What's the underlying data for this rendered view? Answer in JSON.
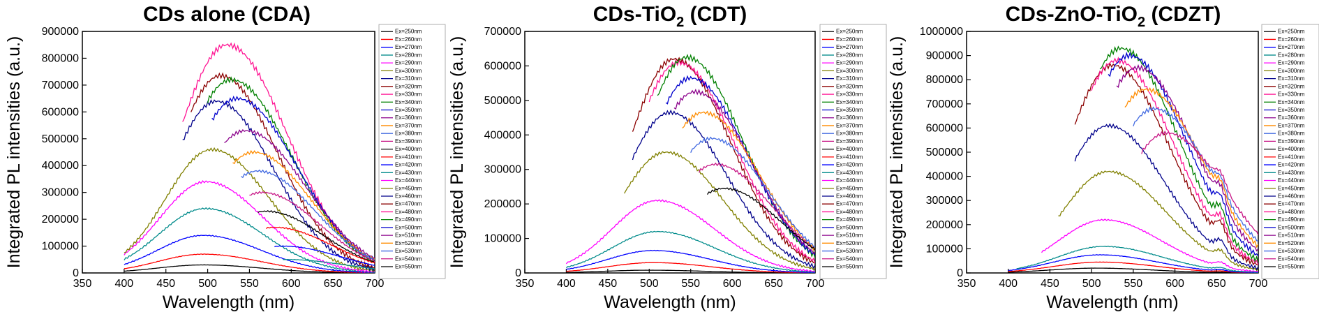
{
  "legend_labels": [
    "Ex=250nm",
    "Ex=260nm",
    "Ex=270nm",
    "Ex=280nm",
    "Ex=290nm",
    "Ex=300nm",
    "Ex=310nm",
    "Ex=320nm",
    "Ex=330nm",
    "Ex=340nm",
    "Ex=350nm",
    "Ex=360nm",
    "Ex=370nm",
    "Ex=380nm",
    "Ex=390nm",
    "Ex=400nm",
    "Ex=410nm",
    "Ex=420nm",
    "Ex=430nm",
    "Ex=440nm",
    "Ex=450nm",
    "Ex=460nm",
    "Ex=470nm",
    "Ex=480nm",
    "Ex=490nm",
    "Ex=500nm",
    "Ex=510nm",
    "Ex=520nm",
    "Ex=530nm",
    "Ex=540nm",
    "Ex=550nm"
  ],
  "series_colors": [
    "#000000",
    "#ff0000",
    "#0000ff",
    "#008b8b",
    "#ff00ff",
    "#808000",
    "#00008b",
    "#8b0000",
    "#ff1493",
    "#008000",
    "#0000cd",
    "#8b008b",
    "#ff8c00",
    "#4169e1",
    "#c71585",
    "#000000",
    "#ff0000",
    "#0000ff",
    "#008b8b",
    "#ff00ff",
    "#808000",
    "#00008b",
    "#8b0000",
    "#ff1493",
    "#008000",
    "#0000cd",
    "#8b008b",
    "#ff8c00",
    "#4169e1",
    "#c71585",
    "#000000"
  ],
  "chart_data": [
    {
      "type": "line",
      "title_main": "CDs alone (CDA)",
      "title_sub": "",
      "title_tail": "",
      "xlabel": "Wavelength (nm)",
      "ylabel": "Integrated PL intensities (a.u.)",
      "xlim": [
        350,
        700
      ],
      "ylim": [
        0,
        900000
      ],
      "xticks": [
        350,
        400,
        450,
        500,
        550,
        600,
        650,
        700
      ],
      "yticks": [
        0,
        100000,
        200000,
        300000,
        400000,
        500000,
        600000,
        700000,
        800000,
        900000
      ],
      "series": [
        {
          "name": "Ex=250nm",
          "peak_x": 495,
          "peak_y": 30000,
          "start_x": 400,
          "width": 55
        },
        {
          "name": "Ex=260nm",
          "peak_x": 495,
          "peak_y": 70000,
          "start_x": 400,
          "width": 55
        },
        {
          "name": "Ex=270nm",
          "peak_x": 495,
          "peak_y": 140000,
          "start_x": 400,
          "width": 55
        },
        {
          "name": "Ex=280nm",
          "peak_x": 497,
          "peak_y": 240000,
          "start_x": 400,
          "width": 55
        },
        {
          "name": "Ex=290nm",
          "peak_x": 498,
          "peak_y": 340000,
          "start_x": 400,
          "width": 55
        },
        {
          "name": "Ex=300nm",
          "peak_x": 505,
          "peak_y": 460000,
          "start_x": 400,
          "width": 55
        },
        {
          "name": "Ex=310nm",
          "peak_x": 510,
          "peak_y": 640000,
          "start_x": 470,
          "width": 55
        },
        {
          "name": "Ex=320nm",
          "peak_x": 515,
          "peak_y": 735000,
          "start_x": 480,
          "width": 55
        },
        {
          "name": "Ex=330nm",
          "peak_x": 523,
          "peak_y": 850000,
          "start_x": 470,
          "width": 58
        },
        {
          "name": "Ex=340nm",
          "peak_x": 528,
          "peak_y": 720000,
          "start_x": 500,
          "width": 58
        },
        {
          "name": "Ex=350nm",
          "peak_x": 535,
          "peak_y": 650000,
          "start_x": 505,
          "width": 58
        },
        {
          "name": "Ex=360nm",
          "peak_x": 545,
          "peak_y": 530000,
          "start_x": 520,
          "width": 58
        },
        {
          "name": "Ex=370nm",
          "peak_x": 555,
          "peak_y": 450000,
          "start_x": 530,
          "width": 55
        },
        {
          "name": "Ex=380nm",
          "peak_x": 560,
          "peak_y": 380000,
          "start_x": 540,
          "width": 55
        },
        {
          "name": "Ex=390nm",
          "peak_x": 565,
          "peak_y": 300000,
          "start_x": 550,
          "width": 55
        },
        {
          "name": "Ex=400nm",
          "peak_x": 570,
          "peak_y": 230000,
          "start_x": 560,
          "width": 55
        },
        {
          "name": "Ex=410nm",
          "peak_x": 580,
          "peak_y": 170000,
          "start_x": 570,
          "width": 55
        },
        {
          "name": "Ex=420nm",
          "peak_x": 590,
          "peak_y": 100000,
          "start_x": 580,
          "width": 55
        },
        {
          "name": "Ex=430nm",
          "peak_x": 595,
          "peak_y": 50000,
          "start_x": 590,
          "width": 55
        }
      ]
    },
    {
      "type": "line",
      "title_main": "CDs-TiO",
      "title_sub": "2",
      "title_tail": " (CDT)",
      "xlabel": "Wavelength (nm)",
      "ylabel": "Integrated PL intensities (a.u.)",
      "xlim": [
        350,
        700
      ],
      "ylim": [
        0,
        700000
      ],
      "xticks": [
        350,
        400,
        450,
        500,
        550,
        600,
        650,
        700
      ],
      "yticks": [
        0,
        100000,
        200000,
        300000,
        400000,
        500000,
        600000,
        700000
      ],
      "series": [
        {
          "name": "Ex=250nm",
          "peak_x": 500,
          "peak_y": 8000,
          "start_x": 400,
          "width": 55
        },
        {
          "name": "Ex=260nm",
          "peak_x": 505,
          "peak_y": 30000,
          "start_x": 400,
          "width": 55
        },
        {
          "name": "Ex=270nm",
          "peak_x": 505,
          "peak_y": 65000,
          "start_x": 400,
          "width": 55
        },
        {
          "name": "Ex=280nm",
          "peak_x": 510,
          "peak_y": 120000,
          "start_x": 400,
          "width": 55
        },
        {
          "name": "Ex=290nm",
          "peak_x": 510,
          "peak_y": 210000,
          "start_x": 400,
          "width": 55
        },
        {
          "name": "Ex=300nm",
          "peak_x": 520,
          "peak_y": 350000,
          "start_x": 470,
          "width": 55
        },
        {
          "name": "Ex=310nm",
          "peak_x": 525,
          "peak_y": 465000,
          "start_x": 480,
          "width": 55
        },
        {
          "name": "Ex=320nm",
          "peak_x": 530,
          "peak_y": 620000,
          "start_x": 480,
          "width": 55
        },
        {
          "name": "Ex=330nm",
          "peak_x": 535,
          "peak_y": 610000,
          "start_x": 500,
          "width": 55
        },
        {
          "name": "Ex=340nm",
          "peak_x": 545,
          "peak_y": 625000,
          "start_x": 510,
          "width": 55
        },
        {
          "name": "Ex=350nm",
          "peak_x": 550,
          "peak_y": 565000,
          "start_x": 520,
          "width": 55
        },
        {
          "name": "Ex=360nm",
          "peak_x": 555,
          "peak_y": 525000,
          "start_x": 530,
          "width": 55
        },
        {
          "name": "Ex=370nm",
          "peak_x": 565,
          "peak_y": 465000,
          "start_x": 540,
          "width": 55
        },
        {
          "name": "Ex=380nm",
          "peak_x": 575,
          "peak_y": 390000,
          "start_x": 550,
          "width": 55
        },
        {
          "name": "Ex=390nm",
          "peak_x": 580,
          "peak_y": 315000,
          "start_x": 560,
          "width": 55
        },
        {
          "name": "Ex=400nm",
          "peak_x": 590,
          "peak_y": 245000,
          "start_x": 570,
          "width": 55
        }
      ]
    },
    {
      "type": "line",
      "title_main": "CDs-ZnO-TiO",
      "title_sub": "2",
      "title_tail": " (CDZT)",
      "xlabel": "Wavelength (nm)",
      "ylabel": "Integrated PL intensities (a.u.)",
      "xlim": [
        350,
        700
      ],
      "ylim": [
        0,
        1000000
      ],
      "xticks": [
        350,
        400,
        450,
        500,
        550,
        600,
        650,
        700
      ],
      "yticks": [
        0,
        100000,
        200000,
        300000,
        400000,
        500000,
        600000,
        700000,
        800000,
        900000,
        1000000
      ],
      "series": [
        {
          "name": "Ex=250nm",
          "peak_x": 505,
          "peak_y": 20000,
          "start_x": 400,
          "width": 55
        },
        {
          "name": "Ex=260nm",
          "peak_x": 510,
          "peak_y": 45000,
          "start_x": 400,
          "width": 55
        },
        {
          "name": "Ex=270nm",
          "peak_x": 510,
          "peak_y": 75000,
          "start_x": 400,
          "width": 55
        },
        {
          "name": "Ex=280nm",
          "peak_x": 515,
          "peak_y": 110000,
          "start_x": 410,
          "width": 55
        },
        {
          "name": "Ex=290nm",
          "peak_x": 515,
          "peak_y": 220000,
          "start_x": 440,
          "width": 55
        },
        {
          "name": "Ex=300nm",
          "peak_x": 520,
          "peak_y": 420000,
          "start_x": 460,
          "width": 55
        },
        {
          "name": "Ex=310nm",
          "peak_x": 520,
          "peak_y": 610000,
          "start_x": 480,
          "width": 55
        },
        {
          "name": "Ex=320nm",
          "peak_x": 525,
          "peak_y": 860000,
          "start_x": 480,
          "width": 55
        },
        {
          "name": "Ex=330nm",
          "peak_x": 530,
          "peak_y": 880000,
          "start_x": 500,
          "width": 55
        },
        {
          "name": "Ex=340nm",
          "peak_x": 535,
          "peak_y": 930000,
          "start_x": 510,
          "width": 55
        },
        {
          "name": "Ex=350nm",
          "peak_x": 545,
          "peak_y": 900000,
          "start_x": 520,
          "width": 55
        },
        {
          "name": "Ex=360nm",
          "peak_x": 555,
          "peak_y": 850000,
          "start_x": 530,
          "width": 55
        },
        {
          "name": "Ex=370nm",
          "peak_x": 565,
          "peak_y": 760000,
          "start_x": 540,
          "width": 55
        },
        {
          "name": "Ex=380nm",
          "peak_x": 575,
          "peak_y": 680000,
          "start_x": 550,
          "width": 55
        },
        {
          "name": "Ex=390nm",
          "peak_x": 590,
          "peak_y": 580000,
          "start_x": 560,
          "width": 55
        }
      ]
    }
  ]
}
